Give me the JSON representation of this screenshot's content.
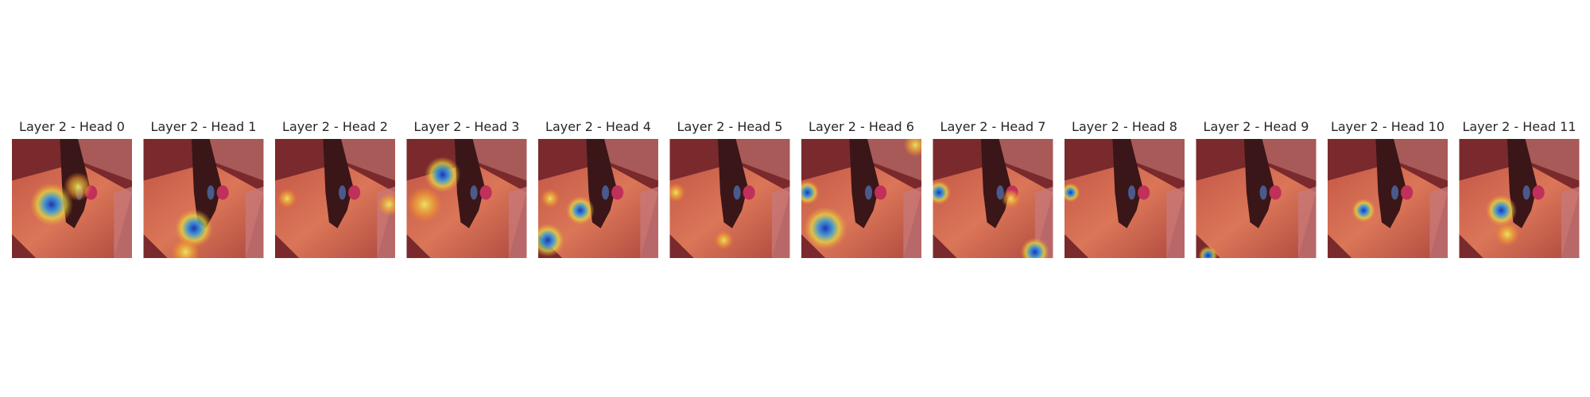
{
  "panels": [
    {
      "title": "Layer 2 - Head 0"
    },
    {
      "title": "Layer 2 - Head 1"
    },
    {
      "title": "Layer 2 - Head 2"
    },
    {
      "title": "Layer 2 - Head 3"
    },
    {
      "title": "Layer 2 - Head 4"
    },
    {
      "title": "Layer 2 - Head 5"
    },
    {
      "title": "Layer 2 - Head 6"
    },
    {
      "title": "Layer 2 - Head 7"
    },
    {
      "title": "Layer 2 - Head 8"
    },
    {
      "title": "Layer 2 - Head 9"
    },
    {
      "title": "Layer 2 - Head 10"
    },
    {
      "title": "Layer 2 - Head 11"
    }
  ]
}
